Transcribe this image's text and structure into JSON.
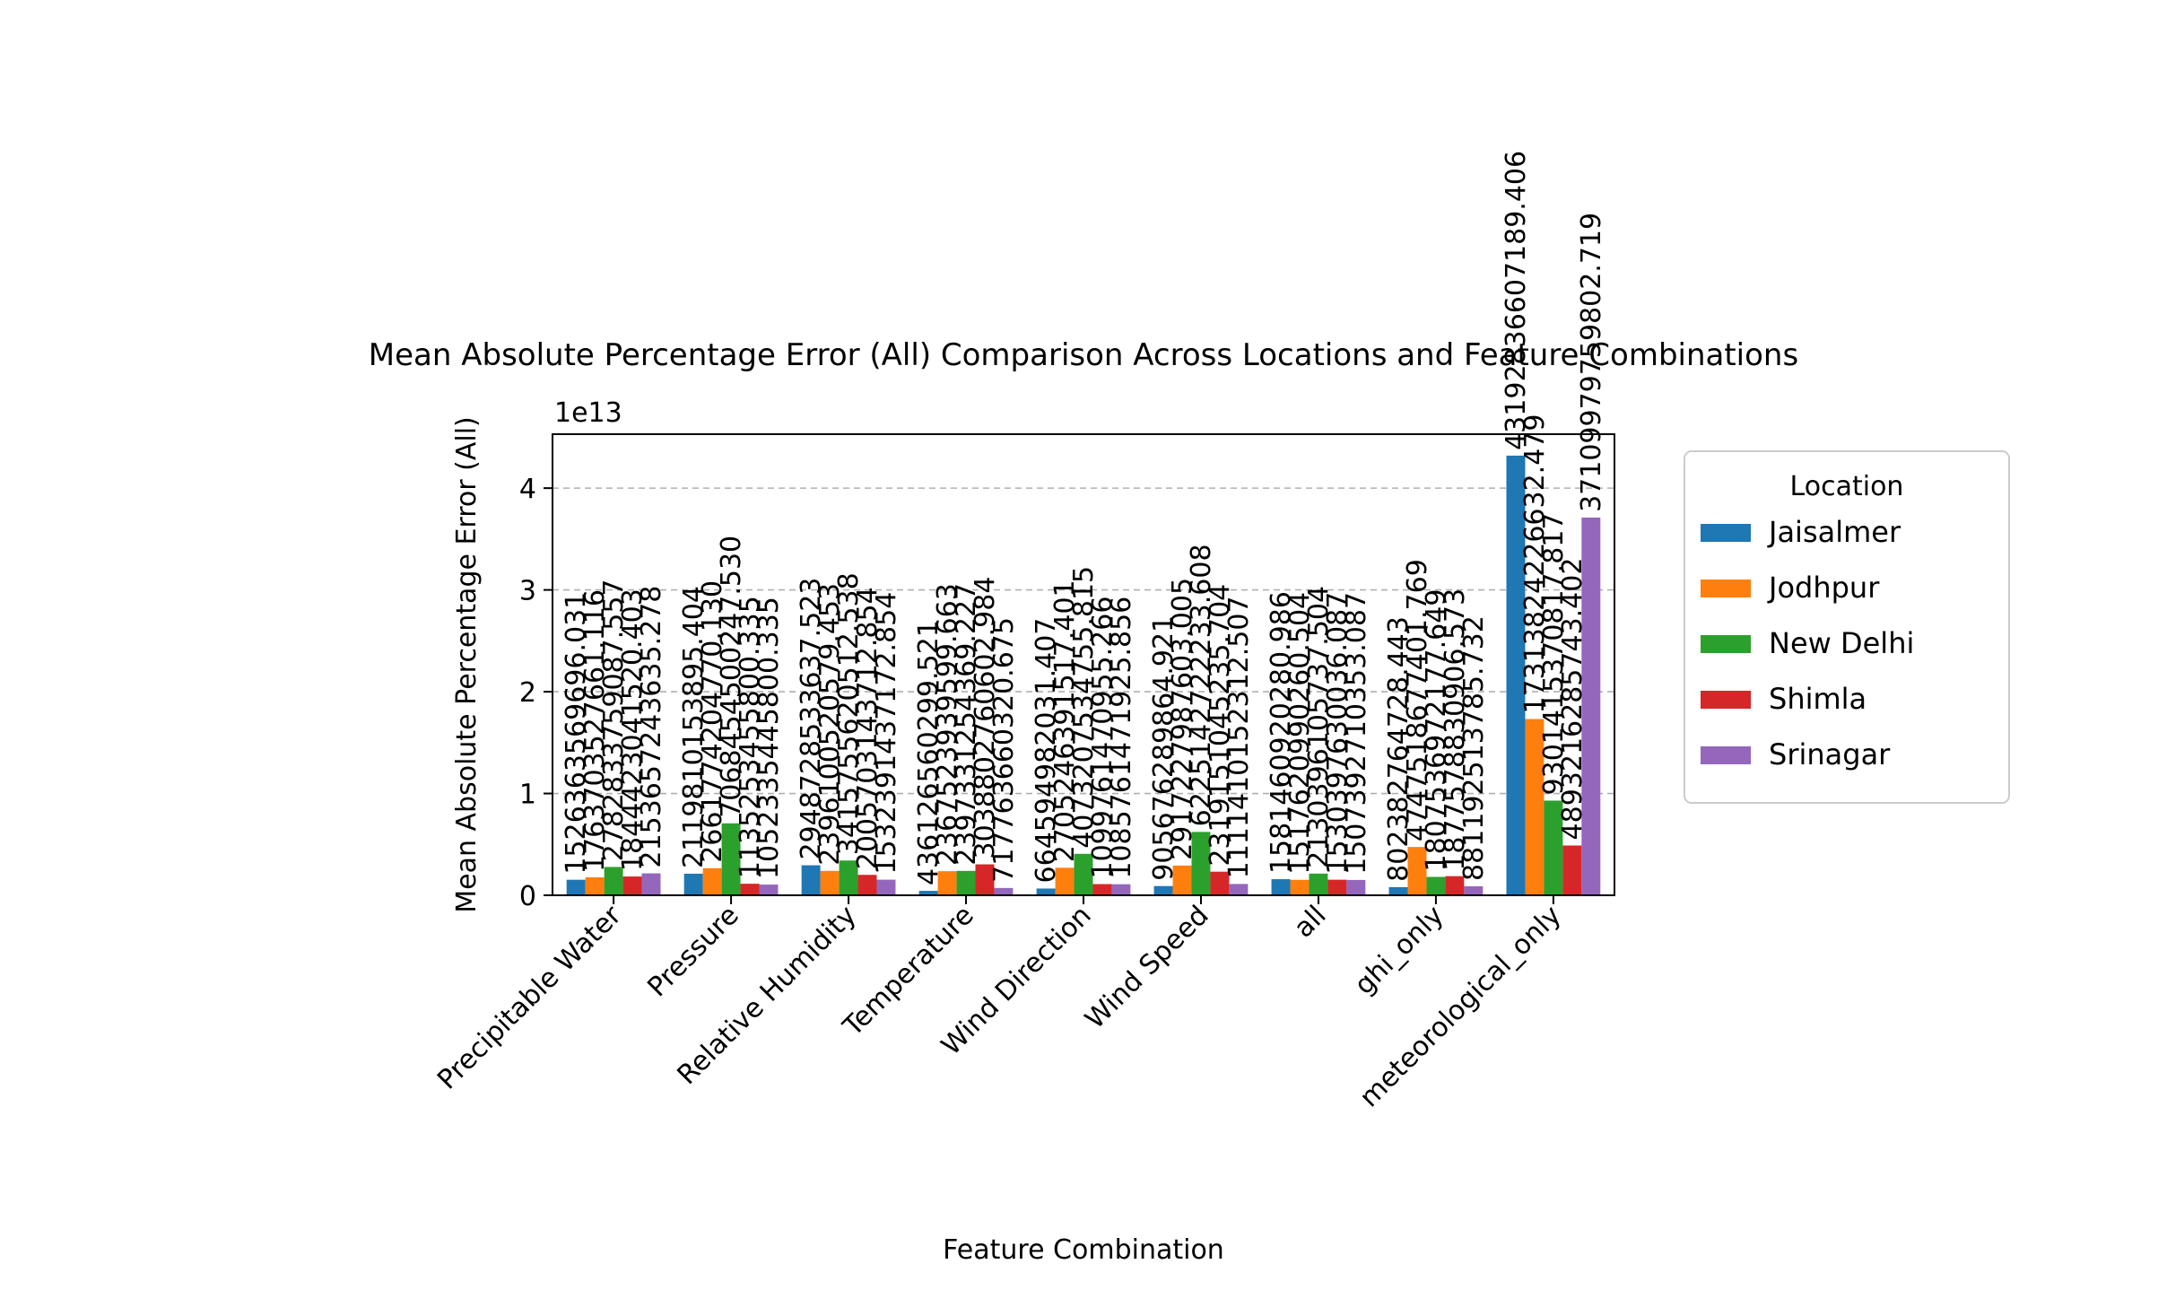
{
  "chart_data": {
    "type": "bar",
    "title": "Mean Absolute Percentage Error (All) Comparison Across Locations and Feature Combinations",
    "xlabel": "Feature Combination",
    "ylabel": "Mean Absolute Percentage Error (All)",
    "offset_label": "1e13",
    "y_scale": 10000000000000.0,
    "ylim": [
      0,
      45300000000000.0
    ],
    "yticks": [
      {
        "value": 0,
        "label": "0"
      },
      {
        "value": 10000000000000.0,
        "label": "1"
      },
      {
        "value": 20000000000000.0,
        "label": "2"
      },
      {
        "value": 30000000000000.0,
        "label": "3"
      },
      {
        "value": 40000000000000.0,
        "label": "4"
      }
    ],
    "grid": "y-dashed",
    "legend_title": "Location",
    "legend_placement": "outside-right",
    "categories": [
      "Precipitable Water",
      "Pressure",
      "Relative Humidity",
      "Temperature",
      "Wind Direction",
      "Wind Speed",
      "all",
      "ghi_only",
      "meteorological_only"
    ],
    "series": [
      {
        "name": "Jaisalmer",
        "color": "#1f77b4",
        "values": [
          1526363569696.031,
          2119810153895.404,
          2948728533637.523,
          436126560299.521,
          664594982031.407,
          905676289864.921,
          1581460920280.986,
          802382764728.443,
          43192836607189.41
        ],
        "labels": [
          "1526363569696.031",
          "2119810153895.404",
          "2948728533637.523",
          "436126560299.521",
          "664594982031.407",
          "905676289864.921",
          "1581460920280.986",
          "802382764728.443",
          "43192836607189.406"
        ]
      },
      {
        "name": "Jodhpur",
        "color": "#ff7f0e",
        "values": [
          1763703527661.116,
          2661774204770.13,
          2396100520579.453,
          2367523939599.663,
          2705246391517.401,
          2917227987603.005,
          1517620990260.504,
          4747518677401.769,
          17313824226632.479
        ],
        "labels": [
          "1763703527661.116",
          "2661774204770.130",
          "2396100520579.453",
          "2367523939599.663",
          "2705246391517.401",
          "2917227987603.005",
          "1517620990260.504",
          "4747518677401.769",
          "17313824226632.479"
        ]
      },
      {
        "name": "New Delhi",
        "color": "#2ca02c",
        "values": [
          2782833759087.557,
          7068454500247.53,
          3415755620512.538,
          2397331254369.227,
          4073207534755.815,
          6225142722233.608,
          2130396105737.504,
          1807536972177.649,
          9301415370817.816
        ],
        "labels": [
          "2782833759087.557",
          "7068454500247.530",
          "3415755620512.538",
          "2397331254369.227",
          "4073207534755.815",
          "6225142722233.608",
          "2130396105737.504",
          "1807536972177.649",
          "9301415370817.817"
        ]
      },
      {
        "name": "Shimla",
        "color": "#d62728",
        "values": [
          1844423041520.403,
          1135253455800.335,
          2005703143712.854,
          3038802760602.984,
          1099761470955.266,
          2319151045235.704,
          1530397630036.087,
          1877578830906.573,
          4893216285743.402
        ],
        "labels": [
          "1844423041520.403",
          "1135253455800.335",
          "2005703143712.854",
          "3038802760602.984",
          "1099761470955.266",
          "2319151045235.704",
          "1530397630036.087",
          "1877578830906.573",
          "4893216285743.402"
        ]
      },
      {
        "name": "Srinagar",
        "color": "#9467bd",
        "values": [
          2153657243635.278,
          1052335445800.335,
          1532391437172.854,
          717763660320.675,
          1085761471925.856,
          1111410152312.507,
          1507392710353.087,
          881192513785.732,
          37109979759802.72
        ],
        "labels": [
          "2153657243635.278",
          "1052335445800.335",
          "1532391437172.854",
          "717763660320.675",
          "1085761471925.856",
          "1111410152312.507",
          "1507392710353.087",
          "881192513785.732",
          "37109979759802.719"
        ]
      }
    ]
  }
}
